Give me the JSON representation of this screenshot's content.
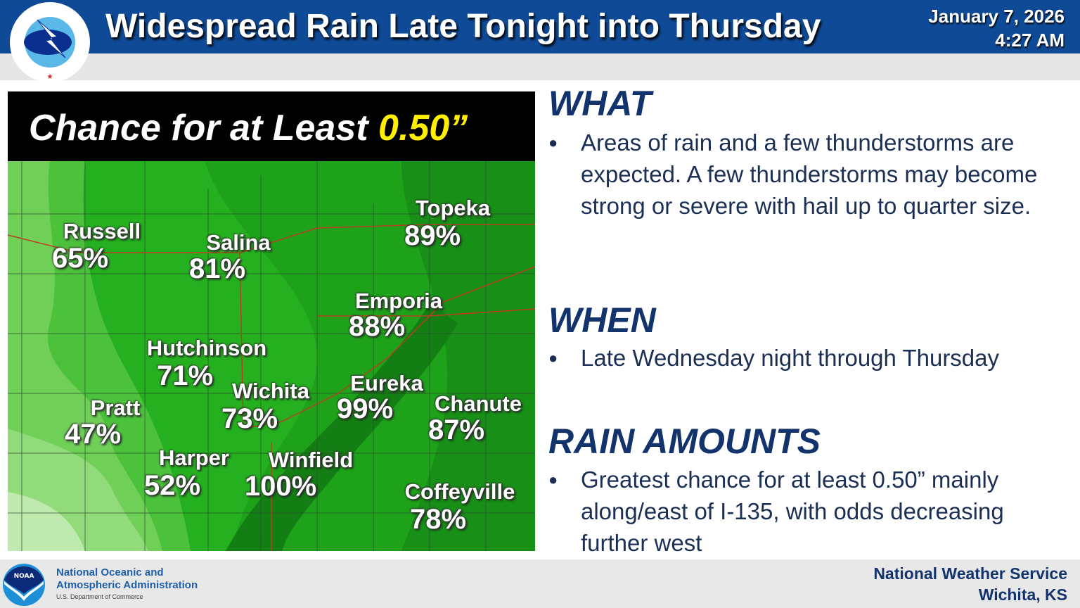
{
  "header": {
    "title": "Widespread Rain Late Tonight into Thursday",
    "date": "January 7, 2026",
    "time": "4:27 AM",
    "logo_text": "NATIONAL WEATHER SERVICE"
  },
  "map": {
    "heading_prefix": "Chance for at Least ",
    "heading_value": "0.50”",
    "cities": [
      {
        "name": "Russell",
        "pct": "65%"
      },
      {
        "name": "Salina",
        "pct": "81%"
      },
      {
        "name": "Topeka",
        "pct": "89%"
      },
      {
        "name": "Emporia",
        "pct": "88%"
      },
      {
        "name": "Hutchinson",
        "pct": "71%"
      },
      {
        "name": "Wichita",
        "pct": "73%"
      },
      {
        "name": "Eureka",
        "pct": "99%"
      },
      {
        "name": "Chanute",
        "pct": "87%"
      },
      {
        "name": "Pratt",
        "pct": "47%"
      },
      {
        "name": "Harper",
        "pct": "52%"
      },
      {
        "name": "Winfield",
        "pct": "100%"
      },
      {
        "name": "Coffeyville",
        "pct": "78%"
      }
    ]
  },
  "sections": [
    {
      "heading": "WHAT",
      "text": "Areas of rain and a few thunderstorms are expected. A few thunderstorms may become strong or severe with hail up to quarter size."
    },
    {
      "heading": "WHEN",
      "text": "Late Wednesday night through Thursday"
    },
    {
      "heading": "RAIN AMOUNTS",
      "text": "Greatest chance for at least 0.50” mainly along/east of I-135, with odds decreasing further west"
    }
  ],
  "footer": {
    "noaa_line1": "National Oceanic and",
    "noaa_line2": "Atmospheric Administration",
    "noaa_sub": "U.S. Department of Commerce",
    "noaa_logo": "NOAA",
    "office_line1": "National Weather Service",
    "office_line2": "Wichita, KS"
  },
  "colors": {
    "header_bg": "#0f4a96",
    "heading_highlight": "#ffee00",
    "text_navy": "#12336b"
  }
}
